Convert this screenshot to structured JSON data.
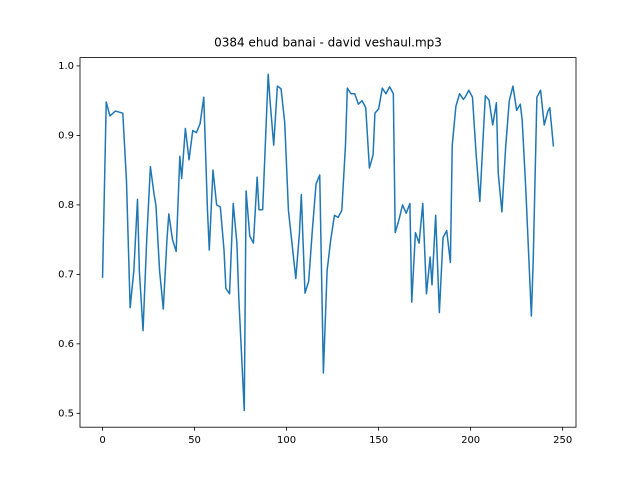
{
  "chart_data": {
    "type": "line",
    "title": "0384 ehud banai - david veshaul.mp3",
    "color": "#1f77b4",
    "x": [
      0,
      2,
      4,
      7,
      11,
      13,
      15,
      17,
      19,
      20,
      22,
      24,
      26,
      28,
      29,
      31,
      33,
      35,
      36,
      38,
      40,
      42,
      43,
      45,
      47,
      49,
      51,
      53,
      55,
      57,
      58,
      60,
      62,
      64,
      66,
      67,
      69,
      71,
      73,
      74,
      77,
      78,
      80,
      82,
      84,
      85,
      87,
      90,
      91,
      93,
      95,
      97,
      99,
      101,
      103,
      105,
      107,
      108,
      110,
      112,
      114,
      116,
      118,
      120,
      122,
      124,
      126,
      128,
      130,
      132,
      133,
      135,
      137,
      139,
      141,
      143,
      145,
      147,
      148,
      150,
      152,
      154,
      156,
      158,
      159,
      161,
      163,
      165,
      167,
      168,
      170,
      172,
      174,
      176,
      178,
      179,
      181,
      183,
      185,
      187,
      189,
      190,
      192,
      194,
      196,
      197,
      199,
      201,
      203,
      205,
      207,
      208,
      210,
      212,
      214,
      215,
      217,
      219,
      221,
      223,
      225,
      227,
      228,
      230,
      233,
      234,
      236,
      238,
      240,
      242,
      243,
      245
    ],
    "values": [
      0.695,
      0.948,
      0.928,
      0.935,
      0.932,
      0.835,
      0.652,
      0.705,
      0.808,
      0.705,
      0.619,
      0.75,
      0.855,
      0.815,
      0.8,
      0.705,
      0.65,
      0.75,
      0.787,
      0.75,
      0.733,
      0.87,
      0.838,
      0.91,
      0.865,
      0.907,
      0.904,
      0.917,
      0.955,
      0.793,
      0.735,
      0.85,
      0.8,
      0.797,
      0.735,
      0.68,
      0.672,
      0.802,
      0.745,
      0.668,
      0.504,
      0.82,
      0.755,
      0.745,
      0.84,
      0.793,
      0.793,
      0.988,
      0.95,
      0.886,
      0.971,
      0.967,
      0.918,
      0.792,
      0.743,
      0.694,
      0.76,
      0.815,
      0.673,
      0.69,
      0.764,
      0.83,
      0.843,
      0.558,
      0.705,
      0.75,
      0.785,
      0.782,
      0.792,
      0.886,
      0.968,
      0.96,
      0.96,
      0.945,
      0.95,
      0.94,
      0.853,
      0.872,
      0.932,
      0.938,
      0.968,
      0.96,
      0.97,
      0.96,
      0.76,
      0.778,
      0.8,
      0.788,
      0.802,
      0.66,
      0.76,
      0.745,
      0.802,
      0.672,
      0.725,
      0.685,
      0.785,
      0.645,
      0.753,
      0.763,
      0.717,
      0.886,
      0.942,
      0.96,
      0.952,
      0.955,
      0.965,
      0.955,
      0.872,
      0.805,
      0.908,
      0.957,
      0.951,
      0.915,
      0.947,
      0.845,
      0.79,
      0.882,
      0.95,
      0.971,
      0.936,
      0.945,
      0.922,
      0.821,
      0.64,
      0.72,
      0.955,
      0.965,
      0.915,
      0.935,
      0.94,
      0.884
    ],
    "xlim": [
      -12.25,
      257.25
    ],
    "xticks": [
      0,
      50,
      100,
      150,
      200,
      250
    ],
    "ylim": [
      0.48,
      1.012
    ],
    "yticks": [
      0.5,
      0.6,
      0.7,
      0.8,
      0.9,
      {
        "value": 1,
        "label": "1.0"
      }
    ]
  }
}
